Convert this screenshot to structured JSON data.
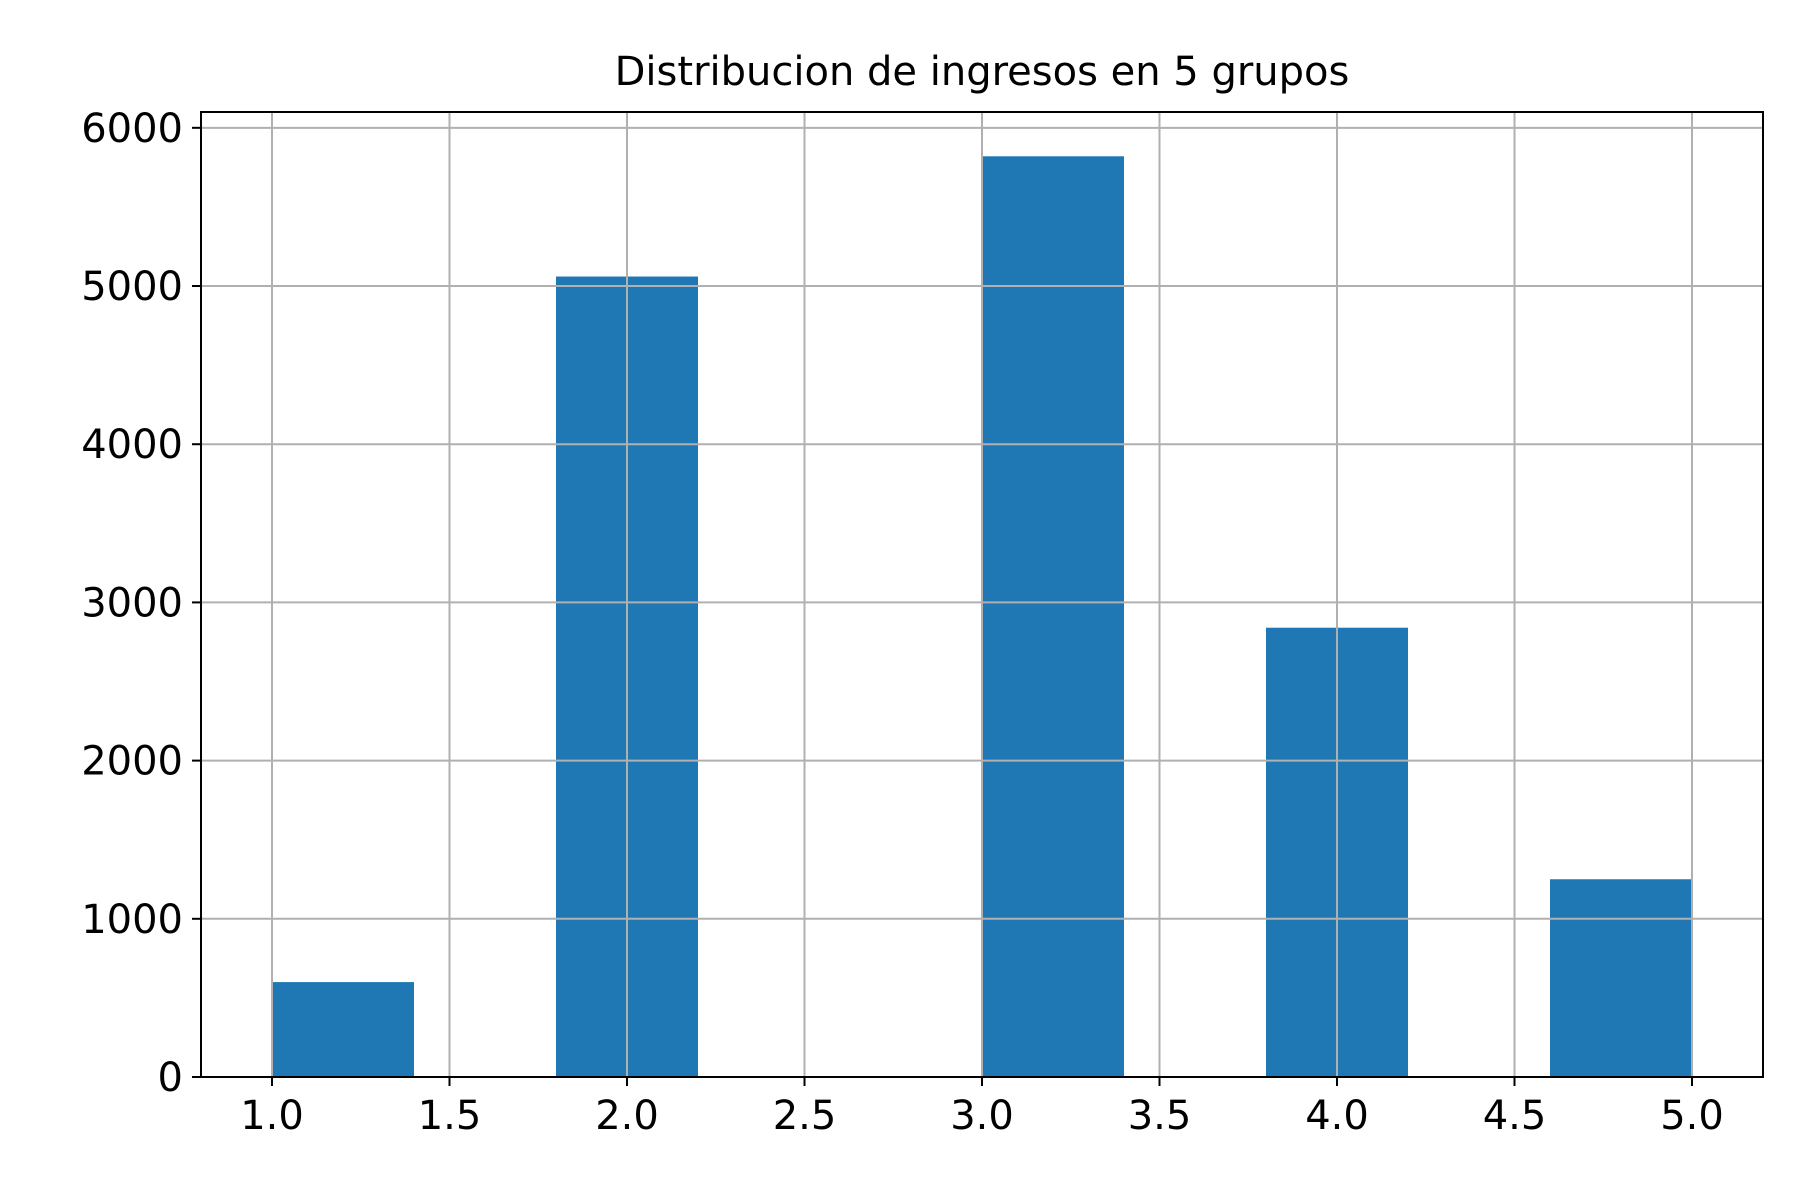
{
  "chart_data": {
    "type": "bar",
    "title": "Distribucion de ingresos en 5 grupos",
    "xlabel": "",
    "ylabel": "",
    "xlim": [
      0.8,
      5.2
    ],
    "ylim": [
      0,
      6100
    ],
    "x_ticks": [
      "1.0",
      "1.5",
      "2.0",
      "2.5",
      "3.0",
      "3.5",
      "4.0",
      "4.5",
      "5.0"
    ],
    "y_ticks": [
      "0",
      "1000",
      "2000",
      "3000",
      "4000",
      "5000",
      "6000"
    ],
    "grid": true,
    "bars": [
      {
        "x_start": 1.0,
        "x_end": 1.4,
        "value": 600
      },
      {
        "x_start": 1.8,
        "x_end": 2.2,
        "value": 5060
      },
      {
        "x_start": 3.0,
        "x_end": 3.4,
        "value": 5820
      },
      {
        "x_start": 3.8,
        "x_end": 4.2,
        "value": 2840
      },
      {
        "x_start": 4.6,
        "x_end": 5.0,
        "value": 1250
      }
    ],
    "colors": {
      "bar": "#1f77b4",
      "grid": "#b0b0b0",
      "axis": "#000000"
    }
  }
}
